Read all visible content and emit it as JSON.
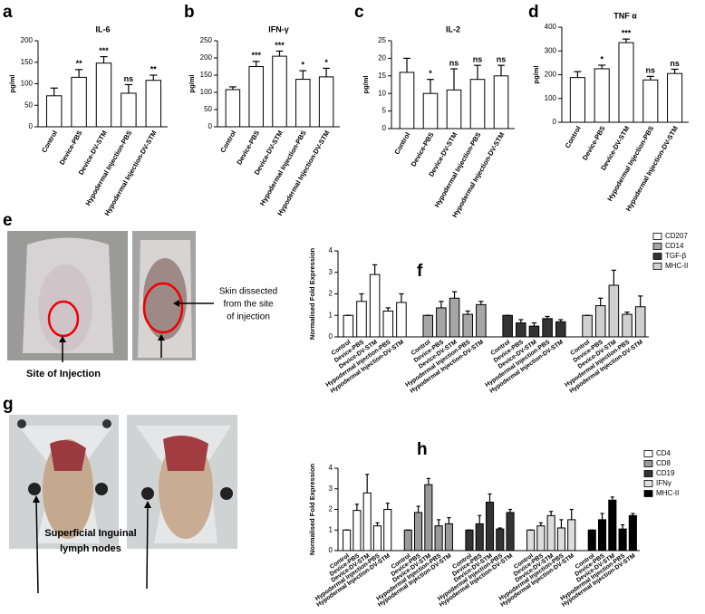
{
  "chart_data": [
    {
      "type": "bar",
      "panel": "a",
      "title": "IL-6",
      "ylabel": "pg/ml",
      "categories": [
        "Control",
        "Device-PBS",
        "Device-DV-STM",
        "Hypodermal Injection-PBS",
        "Hypodermal Injection-DV-STM"
      ],
      "values": [
        72,
        115,
        148,
        78,
        108
      ],
      "errors": [
        18,
        18,
        15,
        20,
        12
      ],
      "annotations": [
        null,
        "**",
        "***",
        "ns",
        "**"
      ],
      "color": "#ffffff",
      "ylim": [
        0,
        200
      ],
      "yticks": [
        0,
        50,
        100,
        150,
        200
      ]
    },
    {
      "type": "bar",
      "panel": "b",
      "title": "IFN-γ",
      "ylabel": "pg/ml",
      "categories": [
        "Control",
        "Device-PBS",
        "Device-DV-STM",
        "Hypodermal Injection-PBS",
        "Hypodermal Injection-DV-STM"
      ],
      "values": [
        108,
        175,
        205,
        138,
        145
      ],
      "errors": [
        8,
        15,
        15,
        25,
        25
      ],
      "annotations": [
        null,
        "***",
        "***",
        "*",
        "*"
      ],
      "color": "#ffffff",
      "ylim": [
        0,
        250
      ],
      "yticks": [
        0,
        50,
        100,
        150,
        200,
        250
      ]
    },
    {
      "type": "bar",
      "panel": "c",
      "title": "IL-2",
      "ylabel": "pg/ml",
      "categories": [
        "Control",
        "Device-PBS",
        "Device-DV-STM",
        "Hypodermal Injection-PBS",
        "Hypodermal Injection-DV-STM"
      ],
      "values": [
        16,
        10,
        11,
        14,
        15
      ],
      "errors": [
        4,
        4,
        6,
        4,
        3
      ],
      "annotations": [
        null,
        "*",
        "ns",
        "ns",
        "ns"
      ],
      "color": "#ffffff",
      "ylim": [
        0,
        25
      ],
      "yticks": [
        0,
        5,
        10,
        15,
        20,
        25
      ]
    },
    {
      "type": "bar",
      "panel": "d",
      "title": "TNF α",
      "ylabel": "pg/ml",
      "categories": [
        "Control",
        "Device-PBS",
        "Device-DV-STM",
        "Hypodermal Injection-PBS",
        "Hypodermal Injection-DV-STM"
      ],
      "values": [
        188,
        225,
        335,
        178,
        205
      ],
      "errors": [
        25,
        15,
        15,
        15,
        18
      ],
      "annotations": [
        null,
        "*",
        "***",
        "ns",
        "ns"
      ],
      "color": "#ffffff",
      "ylim": [
        0,
        400
      ],
      "yticks": [
        0,
        100,
        200,
        300,
        400
      ]
    },
    {
      "type": "grouped_bar",
      "panel": "f",
      "ylabel": "Normalised Fold Expression",
      "categories": [
        "Control",
        "Device-PBS",
        "Device-DV-STM",
        "Hypodermal Injection-PBS",
        "Hypodermal Injection-DV-STM"
      ],
      "series": [
        {
          "name": "CD207",
          "color": "#ffffff",
          "values": [
            1,
            1.65,
            2.9,
            1.2,
            1.6
          ],
          "errors": [
            0,
            0.35,
            0.45,
            0.15,
            0.4
          ]
        },
        {
          "name": "CD14",
          "color": "#a6a6a6",
          "values": [
            1,
            1.35,
            1.8,
            1.05,
            1.5
          ],
          "errors": [
            0,
            0.3,
            0.3,
            0.15,
            0.15
          ]
        },
        {
          "name": "TGF-β",
          "color": "#333333",
          "values": [
            1,
            0.65,
            0.5,
            0.85,
            0.7
          ],
          "errors": [
            0,
            0.15,
            0.15,
            0.1,
            0.1
          ]
        },
        {
          "name": "MHC-II",
          "color": "#d0d0d0",
          "values": [
            1,
            1.45,
            2.4,
            1.05,
            1.4
          ],
          "errors": [
            0,
            0.35,
            0.7,
            0.1,
            0.5
          ]
        }
      ],
      "ylim": [
        0,
        4
      ],
      "yticks": [
        0,
        1,
        2,
        3,
        4
      ],
      "legend": "right"
    },
    {
      "type": "grouped_bar",
      "panel": "h",
      "ylabel": "Normalised Fold Expression",
      "categories": [
        "Control",
        "Device-PBS",
        "Device-DV-STM",
        "Hypodermal Injection-PBS",
        "Hypodermal Injection-DV-STM"
      ],
      "series": [
        {
          "name": "CD4",
          "color": "#ffffff",
          "values": [
            1,
            1.95,
            2.8,
            1.2,
            2.0
          ],
          "errors": [
            0,
            0.3,
            0.9,
            0.15,
            0.3
          ]
        },
        {
          "name": "CD8",
          "color": "#999999",
          "values": [
            1,
            1.85,
            3.2,
            1.2,
            1.3
          ],
          "errors": [
            0,
            0.3,
            0.3,
            0.3,
            0.3
          ]
        },
        {
          "name": "CD19",
          "color": "#333333",
          "values": [
            1,
            1.3,
            2.35,
            1.05,
            1.85
          ],
          "errors": [
            0,
            0.4,
            0.4,
            0.05,
            0.15
          ]
        },
        {
          "name": "IFNγ",
          "color": "#dddddd",
          "values": [
            1,
            1.2,
            1.7,
            1.1,
            1.5
          ],
          "errors": [
            0,
            0.15,
            0.2,
            0.4,
            0.5
          ]
        },
        {
          "name": "MHC-II",
          "color": "#000000",
          "values": [
            1,
            1.5,
            2.45,
            1.05,
            1.7
          ],
          "errors": [
            0,
            0.3,
            0.15,
            0.2,
            0.1
          ]
        }
      ],
      "ylim": [
        0,
        4
      ],
      "yticks": [
        0,
        1,
        2,
        3,
        4
      ],
      "legend": "right"
    }
  ],
  "photos": [
    {
      "panel": "e",
      "annotations": [
        "Site of Injection",
        "Skin dissected",
        "from the site",
        "of injection"
      ]
    },
    {
      "panel": "g",
      "annotations": [
        "Superficial  Inguinal",
        "lymph nodes"
      ]
    }
  ]
}
